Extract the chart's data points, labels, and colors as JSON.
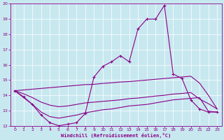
{
  "xlabel": "Windchill (Refroidissement éolien,°C)",
  "xlim": [
    -0.5,
    23.5
  ],
  "ylim": [
    12,
    20
  ],
  "yticks": [
    12,
    13,
    14,
    15,
    16,
    17,
    18,
    19,
    20
  ],
  "xticks": [
    0,
    1,
    2,
    3,
    4,
    5,
    6,
    7,
    8,
    9,
    10,
    11,
    12,
    13,
    14,
    15,
    16,
    17,
    18,
    19,
    20,
    21,
    22,
    23
  ],
  "background_color": "#c8e8f0",
  "line_color": "#880088",
  "series": {
    "line1_x": [
      0,
      1,
      2,
      3,
      4,
      5,
      6,
      7,
      8,
      9,
      10,
      11,
      12,
      13,
      14,
      15,
      16,
      17,
      18,
      19,
      20,
      21,
      22,
      23
    ],
    "line1_y": [
      14.3,
      13.9,
      13.4,
      12.7,
      12.2,
      12.0,
      12.1,
      12.2,
      12.8,
      15.2,
      15.9,
      16.2,
      16.6,
      16.2,
      18.35,
      19.0,
      19.0,
      19.9,
      15.4,
      15.1,
      13.7,
      13.1,
      12.9,
      12.9
    ],
    "line2_x": [
      0,
      1,
      2,
      3,
      4,
      5,
      6,
      7,
      8,
      9,
      10,
      11,
      12,
      13,
      14,
      15,
      16,
      17,
      18,
      19,
      20,
      21,
      22,
      23
    ],
    "line2_y": [
      14.3,
      13.85,
      13.4,
      12.9,
      12.6,
      12.5,
      12.6,
      12.7,
      12.85,
      12.95,
      13.05,
      13.1,
      13.2,
      13.3,
      13.35,
      13.4,
      13.5,
      13.6,
      13.7,
      13.75,
      13.8,
      13.85,
      12.95,
      12.9
    ],
    "line3_x": [
      0,
      1,
      2,
      3,
      4,
      5,
      6,
      7,
      8,
      9,
      10,
      11,
      12,
      13,
      14,
      15,
      16,
      17,
      18,
      19,
      20,
      21,
      22,
      23
    ],
    "line3_y": [
      14.3,
      14.35,
      14.4,
      14.45,
      14.5,
      14.55,
      14.6,
      14.65,
      14.7,
      14.72,
      14.78,
      14.82,
      14.87,
      14.9,
      14.95,
      15.0,
      15.05,
      15.1,
      15.15,
      15.2,
      15.25,
      14.8,
      14.0,
      13.1
    ],
    "line4_x": [
      0,
      1,
      2,
      3,
      4,
      5,
      6,
      7,
      8,
      9,
      10,
      11,
      12,
      13,
      14,
      15,
      16,
      17,
      18,
      19,
      20,
      21,
      22,
      23
    ],
    "line4_y": [
      14.3,
      14.1,
      13.85,
      13.55,
      13.35,
      13.25,
      13.3,
      13.4,
      13.5,
      13.55,
      13.6,
      13.65,
      13.7,
      13.78,
      13.82,
      13.88,
      13.95,
      14.0,
      14.08,
      14.12,
      14.18,
      13.75,
      13.45,
      13.1
    ]
  }
}
